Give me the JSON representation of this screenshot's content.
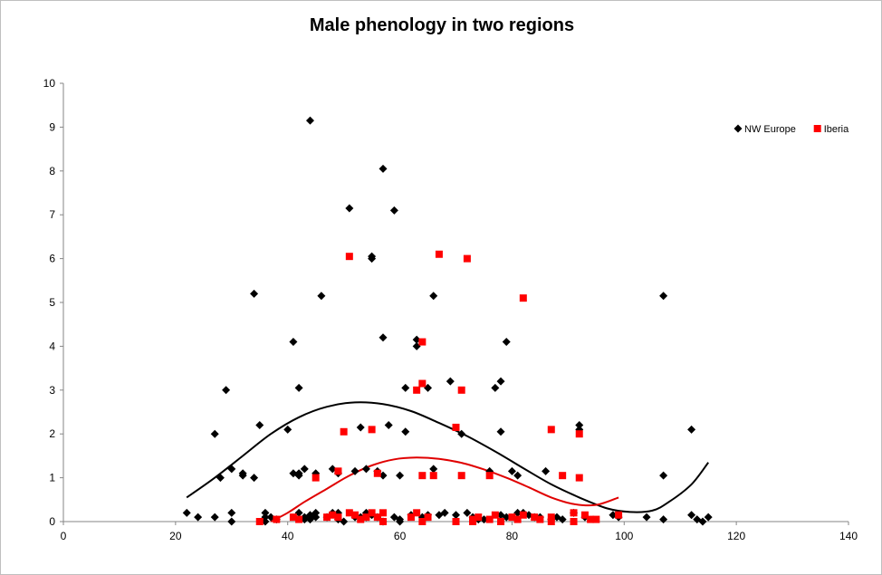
{
  "chart_data": {
    "type": "scatter",
    "title": "Male phenology in two regions",
    "xlabel": "",
    "ylabel": "",
    "xlim": [
      0,
      140
    ],
    "ylim": [
      0,
      10
    ],
    "x_ticks": [
      0,
      20,
      40,
      60,
      80,
      100,
      120,
      140
    ],
    "y_ticks": [
      0,
      1,
      2,
      3,
      4,
      5,
      6,
      7,
      8,
      9,
      10
    ],
    "grid": false,
    "legend_position": "top-right",
    "series": [
      {
        "name": "NW Europe",
        "color": "#000000",
        "marker": "diamond",
        "trendline_color": "#000000",
        "points": [
          [
            22,
            0.2
          ],
          [
            24,
            0.1
          ],
          [
            27,
            2
          ],
          [
            27,
            0.1
          ],
          [
            28,
            1
          ],
          [
            29,
            3
          ],
          [
            30,
            1.2
          ],
          [
            30,
            0.2
          ],
          [
            30,
            0
          ],
          [
            32,
            1.1
          ],
          [
            32,
            1.05
          ],
          [
            34,
            5.2
          ],
          [
            34,
            1
          ],
          [
            35,
            2.2
          ],
          [
            36,
            0.2
          ],
          [
            36,
            0.1
          ],
          [
            36,
            0
          ],
          [
            37,
            0.1
          ],
          [
            38,
            0.05
          ],
          [
            40,
            2.1
          ],
          [
            41,
            4.1
          ],
          [
            41,
            1.1
          ],
          [
            42,
            3.05
          ],
          [
            42,
            1.1
          ],
          [
            42,
            1.05
          ],
          [
            42,
            0.2
          ],
          [
            43,
            1.2
          ],
          [
            43,
            0.1
          ],
          [
            43,
            0.05
          ],
          [
            44,
            9.15
          ],
          [
            44,
            0.15
          ],
          [
            44,
            0.05
          ],
          [
            45,
            1.1
          ],
          [
            45,
            0.2
          ],
          [
            45,
            0.1
          ],
          [
            46,
            5.15
          ],
          [
            47,
            0.1
          ],
          [
            48,
            1.2
          ],
          [
            48,
            0.2
          ],
          [
            49,
            1.1
          ],
          [
            49,
            0.2
          ],
          [
            49,
            0.05
          ],
          [
            50,
            0
          ],
          [
            51,
            7.15
          ],
          [
            52,
            1.15
          ],
          [
            52,
            0.1
          ],
          [
            53,
            2.15
          ],
          [
            53,
            0.1
          ],
          [
            54,
            1.2
          ],
          [
            54,
            0.2
          ],
          [
            54,
            0.1
          ],
          [
            55,
            6.05
          ],
          [
            55,
            6
          ],
          [
            55,
            0.15
          ],
          [
            56,
            1.15
          ],
          [
            56,
            0.1
          ],
          [
            57,
            8.05
          ],
          [
            57,
            4.2
          ],
          [
            57,
            1.05
          ],
          [
            57,
            0
          ],
          [
            58,
            2.2
          ],
          [
            59,
            7.1
          ],
          [
            59,
            0.1
          ],
          [
            60,
            1.05
          ],
          [
            60,
            0.05
          ],
          [
            60,
            0
          ],
          [
            61,
            3.05
          ],
          [
            61,
            2.05
          ],
          [
            62,
            0.15
          ],
          [
            63,
            4.15
          ],
          [
            63,
            4
          ],
          [
            64,
            0.1
          ],
          [
            65,
            3.05
          ],
          [
            65,
            0.15
          ],
          [
            66,
            5.15
          ],
          [
            66,
            1.2
          ],
          [
            67,
            0.15
          ],
          [
            68,
            0.2
          ],
          [
            69,
            3.2
          ],
          [
            70,
            0.15
          ],
          [
            71,
            2
          ],
          [
            72,
            0.2
          ],
          [
            73,
            0.1
          ],
          [
            74,
            0.05
          ],
          [
            75,
            0.05
          ],
          [
            76,
            1.15
          ],
          [
            77,
            3.05
          ],
          [
            78,
            3.2
          ],
          [
            78,
            2.05
          ],
          [
            78,
            0.15
          ],
          [
            79,
            4.1
          ],
          [
            79,
            0.1
          ],
          [
            80,
            1.15
          ],
          [
            81,
            1.05
          ],
          [
            81,
            0.2
          ],
          [
            82,
            0.2
          ],
          [
            83,
            0.15
          ],
          [
            84,
            0.1
          ],
          [
            85,
            0.1
          ],
          [
            86,
            1.15
          ],
          [
            87,
            0.05
          ],
          [
            88,
            0.1
          ],
          [
            89,
            0.05
          ],
          [
            91,
            0.2
          ],
          [
            92,
            2.2
          ],
          [
            92,
            2.1
          ],
          [
            93,
            0.1
          ],
          [
            98,
            0.15
          ],
          [
            99,
            0.1
          ],
          [
            104,
            0.1
          ],
          [
            107,
            5.15
          ],
          [
            107,
            1.05
          ],
          [
            107,
            0.05
          ],
          [
            112,
            2.1
          ],
          [
            112,
            0.15
          ],
          [
            113,
            0.05
          ],
          [
            114,
            0
          ],
          [
            115,
            0.1
          ]
        ]
      },
      {
        "name": "Iberia",
        "color": "#ff0000",
        "marker": "square",
        "trendline_color": "#e00000",
        "points": [
          [
            35,
            0
          ],
          [
            38,
            0.05
          ],
          [
            41,
            0.1
          ],
          [
            42,
            0.05
          ],
          [
            45,
            1
          ],
          [
            47,
            0.1
          ],
          [
            48,
            0.15
          ],
          [
            49,
            1.15
          ],
          [
            49,
            0.1
          ],
          [
            50,
            2.05
          ],
          [
            51,
            6.05
          ],
          [
            51,
            0.2
          ],
          [
            52,
            0.15
          ],
          [
            53,
            0.05
          ],
          [
            54,
            0.1
          ],
          [
            55,
            2.1
          ],
          [
            55,
            0.2
          ],
          [
            56,
            1.1
          ],
          [
            56,
            0.1
          ],
          [
            57,
            0.2
          ],
          [
            57,
            0
          ],
          [
            62,
            0.1
          ],
          [
            63,
            3
          ],
          [
            63,
            0.2
          ],
          [
            64,
            4.1
          ],
          [
            64,
            3.15
          ],
          [
            64,
            1.05
          ],
          [
            64,
            0
          ],
          [
            65,
            0.1
          ],
          [
            66,
            1.05
          ],
          [
            67,
            6.1
          ],
          [
            70,
            2.15
          ],
          [
            70,
            0
          ],
          [
            71,
            3
          ],
          [
            71,
            1.05
          ],
          [
            72,
            6
          ],
          [
            73,
            0.05
          ],
          [
            73,
            0
          ],
          [
            74,
            0.1
          ],
          [
            76,
            1.05
          ],
          [
            76,
            0.05
          ],
          [
            77,
            0.15
          ],
          [
            78,
            0
          ],
          [
            80,
            0.1
          ],
          [
            81,
            0.05
          ],
          [
            82,
            5.1
          ],
          [
            82,
            0.15
          ],
          [
            84,
            0.1
          ],
          [
            85,
            0.05
          ],
          [
            87,
            2.1
          ],
          [
            87,
            0.1
          ],
          [
            87,
            0
          ],
          [
            89,
            1.05
          ],
          [
            91,
            0.2
          ],
          [
            91,
            0
          ],
          [
            92,
            2
          ],
          [
            92,
            1
          ],
          [
            93,
            0.15
          ],
          [
            94,
            0.05
          ],
          [
            95,
            0.05
          ],
          [
            99,
            0.15
          ]
        ]
      }
    ],
    "trendlines": [
      {
        "series": "NW Europe",
        "color": "#000000",
        "points": [
          [
            22,
            0.55
          ],
          [
            27,
            1.0
          ],
          [
            32,
            1.5
          ],
          [
            37,
            2.0
          ],
          [
            42,
            2.38
          ],
          [
            47,
            2.62
          ],
          [
            52,
            2.72
          ],
          [
            57,
            2.68
          ],
          [
            62,
            2.52
          ],
          [
            67,
            2.25
          ],
          [
            72,
            1.95
          ],
          [
            77,
            1.6
          ],
          [
            82,
            1.22
          ],
          [
            87,
            0.85
          ],
          [
            92,
            0.55
          ],
          [
            97,
            0.3
          ],
          [
            101,
            0.22
          ],
          [
            105,
            0.25
          ],
          [
            108,
            0.45
          ],
          [
            112,
            0.85
          ],
          [
            115,
            1.35
          ]
        ]
      },
      {
        "series": "Iberia",
        "color": "#e00000",
        "points": [
          [
            37,
            0.0
          ],
          [
            40,
            0.2
          ],
          [
            43,
            0.45
          ],
          [
            47,
            0.75
          ],
          [
            51,
            1.05
          ],
          [
            55,
            1.28
          ],
          [
            59,
            1.42
          ],
          [
            63,
            1.46
          ],
          [
            67,
            1.43
          ],
          [
            71,
            1.34
          ],
          [
            75,
            1.19
          ],
          [
            79,
            1.0
          ],
          [
            83,
            0.78
          ],
          [
            87,
            0.55
          ],
          [
            91,
            0.4
          ],
          [
            95,
            0.38
          ],
          [
            99,
            0.55
          ]
        ]
      }
    ]
  }
}
